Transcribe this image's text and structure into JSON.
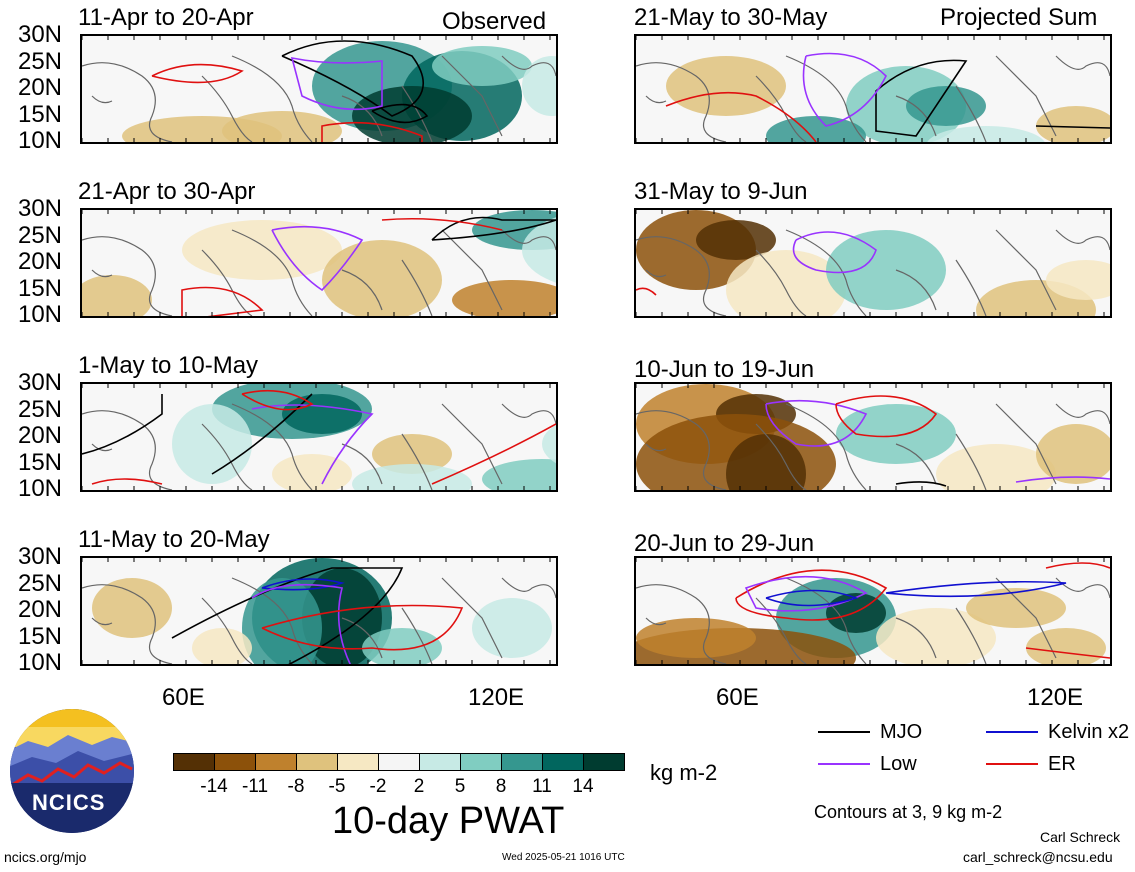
{
  "labels": {
    "observed": "Observed",
    "projected": "Projected Sum",
    "lon_ticks": [
      "60E",
      "120E"
    ],
    "lat_ticks": [
      "30N",
      "25N",
      "20N",
      "15N",
      "10N"
    ],
    "colorbar_title": "10-day PWAT",
    "units": "kg m-2",
    "contours_note": "Contours at 3, 9 kg m-2",
    "logo_text": "NCICS",
    "site": "ncics.org/mjo",
    "timestamp": "Wed 2025-05-21 1016 UTC",
    "author": "Carl Schreck",
    "email": "carl_schreck@ncsu.edu"
  },
  "legend": [
    {
      "label": "MJO",
      "color": "#000000"
    },
    {
      "label": "Kelvin x2",
      "color": "#1010d0"
    },
    {
      "label": "Low",
      "color": "#9933ff"
    },
    {
      "label": "ER",
      "color": "#e01010"
    }
  ],
  "colorbar": {
    "colors": [
      "#543005",
      "#8c510a",
      "#bf812d",
      "#dfc27d",
      "#f6e8c3",
      "#f5f5f5",
      "#c7eae5",
      "#80cdc1",
      "#35978f",
      "#01665e",
      "#003c30"
    ],
    "tick_labels": [
      "-14",
      "-11",
      "-8",
      "-5",
      "-2",
      "2",
      "5",
      "8",
      "11",
      "14"
    ]
  },
  "chart_data": {
    "type": "heatmap",
    "variable": "10-day PWAT",
    "units": "kg m-2",
    "contour_levels": [
      3,
      9
    ],
    "lon_range": [
      40,
      130
    ],
    "lat_range": [
      10,
      30
    ],
    "panels": [
      {
        "period": "11-Apr to 20-Apr",
        "kind": "Observed"
      },
      {
        "period": "21-Apr to 30-Apr",
        "kind": "Observed"
      },
      {
        "period": "1-May to 10-May",
        "kind": "Observed"
      },
      {
        "period": "11-May to 20-May",
        "kind": "Observed"
      },
      {
        "period": "21-May to 30-May",
        "kind": "Projected Sum"
      },
      {
        "period": "31-May to 9-Jun",
        "kind": "Projected Sum"
      },
      {
        "period": "10-Jun to 19-Jun",
        "kind": "Projected Sum"
      },
      {
        "period": "20-Jun to 29-Jun",
        "kind": "Projected Sum"
      }
    ]
  }
}
